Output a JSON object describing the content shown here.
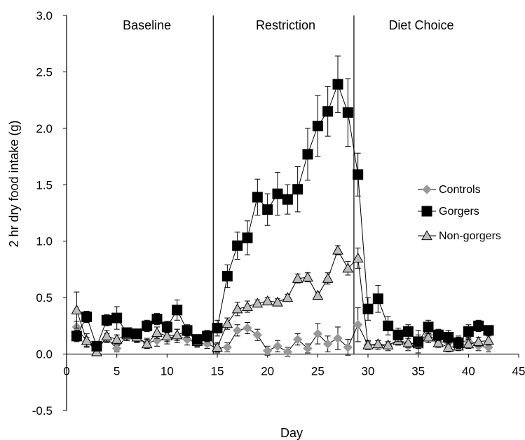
{
  "chart_data": {
    "type": "line",
    "xlabel": "Day",
    "ylabel": "2 hr dry food intake (g)",
    "xlim": [
      0,
      45
    ],
    "ylim": [
      -0.5,
      3.0
    ],
    "xticks": [
      0,
      5,
      10,
      15,
      20,
      25,
      30,
      35,
      40,
      45
    ],
    "xtick_labels": [
      "0",
      "5",
      "10",
      "15",
      "20",
      "25",
      "30",
      "35",
      "40",
      "45"
    ],
    "yticks": [
      -0.5,
      0.0,
      0.5,
      1.0,
      1.5,
      2.0,
      2.5,
      3.0
    ],
    "ytick_labels": [
      "-0.5",
      "0.0",
      "0.5",
      "1.0",
      "1.5",
      "2.0",
      "2.5",
      "3.0"
    ],
    "grid": false,
    "legend_position": "right",
    "phase_dividers": [
      14.6,
      28.6
    ],
    "phases": [
      {
        "label": "Baseline",
        "center": 8
      },
      {
        "label": "Restriction",
        "center": 21.8
      },
      {
        "label": "Diet Choice",
        "center": 35.3
      }
    ],
    "series": [
      {
        "name": "Controls",
        "marker": "diamond",
        "color": "#999999",
        "x": [
          1,
          2,
          3,
          4,
          5,
          6,
          7,
          8,
          9,
          10,
          11,
          12,
          13,
          14,
          15,
          16,
          17,
          18,
          19,
          20,
          21,
          22,
          23,
          24,
          25,
          26,
          27,
          28,
          29,
          30,
          31,
          32,
          33,
          34,
          35,
          36,
          37,
          38,
          39,
          40,
          41,
          42
        ],
        "values": [
          0.24,
          0.11,
          0.05,
          0.14,
          0.05,
          0.16,
          0.14,
          0.1,
          0.12,
          0.14,
          0.16,
          0.13,
          0.1,
          0.09,
          0.05,
          0.06,
          0.21,
          0.23,
          0.17,
          0.03,
          0.07,
          0.02,
          0.13,
          0.05,
          0.18,
          0.09,
          0.14,
          0.06,
          0.26,
          0.08,
          0.08,
          0.07,
          0.13,
          0.07,
          0.12,
          0.17,
          0.11,
          0.1,
          0.12,
          0.11,
          0.07,
          0.06
        ],
        "errors": [
          0.05,
          0.04,
          0.03,
          0.04,
          0.03,
          0.04,
          0.04,
          0.04,
          0.05,
          0.05,
          0.06,
          0.05,
          0.04,
          0.04,
          0.04,
          0.04,
          0.05,
          0.05,
          0.05,
          0.04,
          0.05,
          0.04,
          0.05,
          0.04,
          0.09,
          0.07,
          0.1,
          0.07,
          0.15,
          0.04,
          0.04,
          0.04,
          0.05,
          0.04,
          0.05,
          0.05,
          0.05,
          0.04,
          0.04,
          0.04,
          0.04,
          0.04
        ]
      },
      {
        "name": "Gorgers",
        "marker": "square",
        "color": "#000000",
        "x": [
          1,
          2,
          3,
          4,
          5,
          6,
          7,
          8,
          9,
          10,
          11,
          12,
          13,
          14,
          15,
          16,
          17,
          18,
          19,
          20,
          21,
          22,
          23,
          24,
          25,
          26,
          27,
          28,
          29,
          30,
          31,
          32,
          33,
          34,
          35,
          36,
          37,
          38,
          39,
          40,
          41,
          42
        ],
        "values": [
          0.16,
          0.33,
          0.07,
          0.3,
          0.32,
          0.19,
          0.18,
          0.25,
          0.31,
          0.24,
          0.39,
          0.21,
          0.13,
          0.16,
          0.23,
          0.69,
          0.96,
          1.03,
          1.39,
          1.28,
          1.42,
          1.37,
          1.46,
          1.77,
          2.02,
          2.15,
          2.39,
          2.14,
          1.59,
          0.4,
          0.49,
          0.25,
          0.17,
          0.2,
          0.11,
          0.24,
          0.17,
          0.15,
          0.1,
          0.2,
          0.25,
          0.21
        ],
        "errors": [
          0.05,
          0.05,
          0.04,
          0.05,
          0.1,
          0.04,
          0.04,
          0.05,
          0.05,
          0.05,
          0.09,
          0.05,
          0.04,
          0.05,
          0.07,
          0.1,
          0.12,
          0.15,
          0.16,
          0.14,
          0.19,
          0.13,
          0.2,
          0.23,
          0.27,
          0.22,
          0.25,
          0.3,
          0.19,
          0.1,
          0.12,
          0.08,
          0.06,
          0.06,
          0.1,
          0.06,
          0.05,
          0.06,
          0.05,
          0.06,
          0.05,
          0.04
        ]
      },
      {
        "name": "Non-gorgers",
        "marker": "triangle",
        "color": "#bdbdbd",
        "x": [
          1,
          2,
          3,
          4,
          5,
          6,
          7,
          8,
          9,
          10,
          11,
          12,
          13,
          14,
          15,
          16,
          17,
          18,
          19,
          20,
          21,
          22,
          23,
          24,
          25,
          26,
          27,
          28,
          29,
          30,
          31,
          32,
          33,
          34,
          35,
          36,
          37,
          38,
          39,
          40,
          41,
          42
        ],
        "values": [
          0.39,
          0.12,
          0.02,
          0.16,
          0.13,
          0.17,
          0.15,
          0.09,
          0.19,
          0.16,
          0.17,
          0.2,
          0.11,
          0.16,
          0.06,
          0.27,
          0.4,
          0.42,
          0.45,
          0.47,
          0.46,
          0.5,
          0.67,
          0.68,
          0.52,
          0.67,
          0.92,
          0.76,
          0.85,
          0.08,
          0.09,
          0.08,
          0.12,
          0.1,
          0.09,
          0.15,
          0.1,
          0.06,
          0.07,
          0.09,
          0.11,
          0.12
        ],
        "errors": [
          0.16,
          0.06,
          0.03,
          0.05,
          0.04,
          0.05,
          0.04,
          0.04,
          0.05,
          0.05,
          0.05,
          0.05,
          0.04,
          0.04,
          0.04,
          0.05,
          0.06,
          0.05,
          0.03,
          0.03,
          0.03,
          0.03,
          0.04,
          0.04,
          0.03,
          0.05,
          0.04,
          0.06,
          0.09,
          0.03,
          0.03,
          0.03,
          0.04,
          0.04,
          0.04,
          0.05,
          0.04,
          0.04,
          0.04,
          0.04,
          0.04,
          0.04
        ]
      }
    ]
  }
}
